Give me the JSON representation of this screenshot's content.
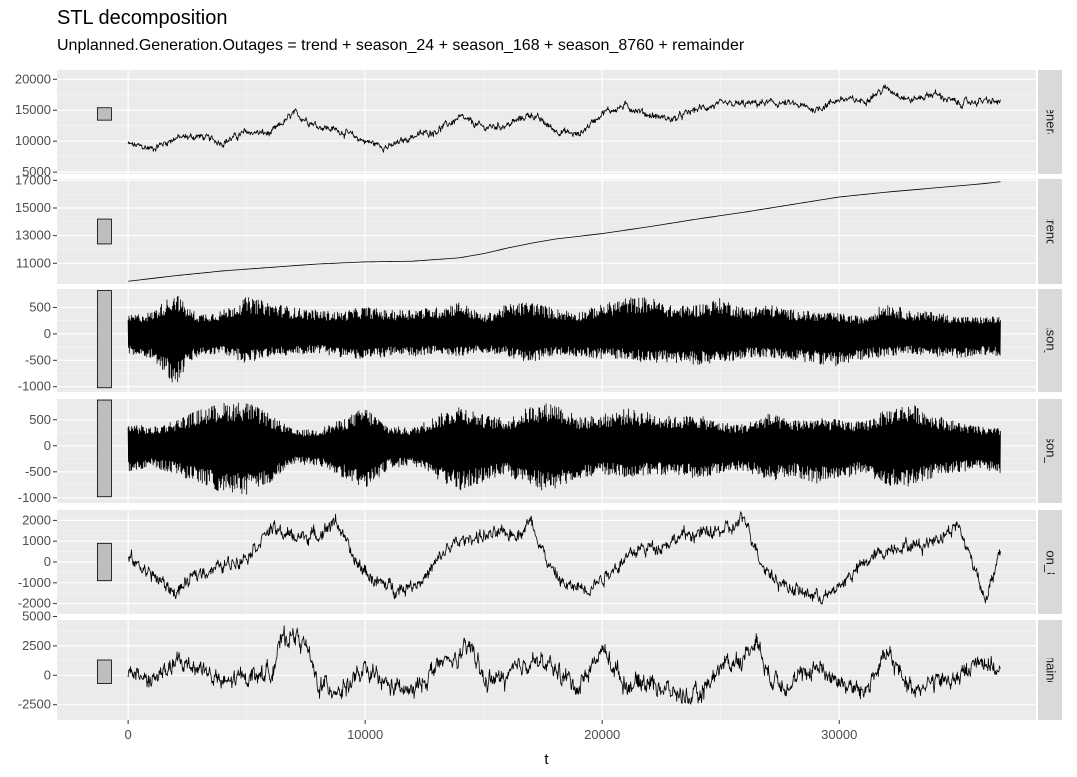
{
  "chart_data": {
    "type": "line",
    "title": "STL decomposition",
    "subtitle": "Unplanned.Generation.Outages = trend + season_24 + season_168 + season_8760 + remainder",
    "xlabel": "t",
    "xlim": [
      -3000,
      38300
    ],
    "x_ticks": [
      0,
      10000,
      20000,
      30000
    ],
    "x_tick_labels": [
      "0",
      "10000",
      "20000",
      "30000"
    ],
    "x_range": [
      0,
      36800
    ],
    "grid": true,
    "panels": [
      {
        "name": "Unplanned.Generation.Outages",
        "strip_label": "Unplanned.Generation.Outages",
        "ylim": [
          4700,
          21500
        ],
        "y_ticks": [
          5000,
          10000,
          15000,
          20000
        ],
        "y_tick_labels": [
          "5000",
          "10000",
          "15000",
          "20000"
        ],
        "scale_bar": [
          13400,
          15400
        ],
        "x": [
          0,
          1000,
          2000,
          3000,
          4000,
          5000,
          6000,
          7000,
          8000,
          9000,
          10000,
          11000,
          12000,
          13000,
          14000,
          15000,
          16000,
          17000,
          18000,
          19000,
          20000,
          21000,
          22000,
          23000,
          24000,
          25000,
          26000,
          27000,
          28000,
          29000,
          30000,
          31000,
          32000,
          33000,
          34000,
          35000,
          36000,
          36800
        ],
        "values": [
          9500,
          8800,
          10500,
          10800,
          9800,
          11500,
          11200,
          14500,
          12500,
          11600,
          10000,
          9000,
          10800,
          11700,
          13800,
          12200,
          12600,
          14400,
          11800,
          11000,
          14600,
          15700,
          14200,
          13500,
          15200,
          15900,
          16000,
          16200,
          16000,
          15100,
          16800,
          16500,
          18600,
          16600,
          17700,
          16100,
          16500,
          16300
        ],
        "noise_amplitude": 800
      },
      {
        "name": "trend",
        "strip_label": "trend",
        "ylim": [
          9500,
          17100
        ],
        "y_ticks": [
          11000,
          13000,
          15000,
          17000
        ],
        "y_tick_labels": [
          "11000",
          "13000",
          "15000",
          "17000"
        ],
        "scale_bar": [
          12400,
          14200
        ],
        "x": [
          0,
          2000,
          4000,
          6000,
          8000,
          10000,
          12000,
          14000,
          15000,
          16000,
          17000,
          18000,
          20000,
          22000,
          24000,
          26000,
          28000,
          30000,
          32000,
          34000,
          36000,
          36800
        ],
        "values": [
          9700,
          10100,
          10450,
          10700,
          10950,
          11100,
          11150,
          11400,
          11700,
          12100,
          12450,
          12750,
          13150,
          13650,
          14200,
          14700,
          15250,
          15800,
          16150,
          16450,
          16750,
          16900
        ],
        "noise_amplitude": 0
      },
      {
        "name": "season_24",
        "strip_label": "season_24",
        "ylim": [
          -1100,
          850
        ],
        "y_ticks": [
          -1000,
          -500,
          0,
          500
        ],
        "y_tick_labels": [
          "-1000",
          "-500",
          "0",
          "500"
        ],
        "scale_bar": [
          -1020,
          820
        ],
        "envelope_x": [
          0,
          1000,
          2000,
          2500,
          3000,
          4000,
          5000,
          6000,
          7000,
          8000,
          9000,
          10000,
          11000,
          12000,
          13000,
          14000,
          15000,
          16000,
          17000,
          18000,
          19000,
          20000,
          21000,
          22000,
          23000,
          24000,
          25000,
          26000,
          27000,
          28000,
          29000,
          30000,
          31000,
          32000,
          33000,
          34000,
          35000,
          36000,
          36800
        ],
        "envelope_upper": [
          350,
          420,
          800,
          500,
          380,
          450,
          700,
          600,
          500,
          450,
          420,
          520,
          440,
          480,
          500,
          620,
          350,
          560,
          620,
          480,
          420,
          560,
          690,
          700,
          520,
          560,
          680,
          500,
          560,
          460,
          420,
          390,
          320,
          600,
          430,
          420,
          330,
          320,
          330
        ],
        "envelope_lower": [
          -400,
          -450,
          -1000,
          -600,
          -420,
          -380,
          -560,
          -430,
          -400,
          -360,
          -440,
          -500,
          -420,
          -440,
          -380,
          -420,
          -360,
          -420,
          -570,
          -400,
          -420,
          -480,
          -470,
          -560,
          -540,
          -580,
          -570,
          -450,
          -450,
          -500,
          -560,
          -620,
          -480,
          -420,
          -380,
          -420,
          -470,
          -380,
          -450
        ]
      },
      {
        "name": "season_168",
        "strip_label": "season_168",
        "ylim": [
          -1100,
          900
        ],
        "y_ticks": [
          -1000,
          -500,
          0,
          500
        ],
        "y_tick_labels": [
          "-1000",
          "-500",
          "0",
          "500"
        ],
        "scale_bar": [
          -980,
          880
        ],
        "envelope_x": [
          0,
          1000,
          2000,
          3000,
          4000,
          5000,
          6000,
          7000,
          8000,
          9000,
          10000,
          11000,
          12000,
          13000,
          14000,
          15000,
          16000,
          17000,
          18000,
          19000,
          20000,
          21000,
          22000,
          23000,
          24000,
          25000,
          26000,
          27000,
          28000,
          29000,
          30000,
          31000,
          32000,
          33000,
          34000,
          35000,
          36000,
          36800
        ],
        "envelope_upper": [
          450,
          350,
          500,
          700,
          830,
          860,
          600,
          300,
          320,
          500,
          750,
          380,
          350,
          580,
          800,
          600,
          520,
          780,
          850,
          550,
          600,
          720,
          650,
          560,
          600,
          450,
          420,
          620,
          500,
          540,
          500,
          460,
          700,
          820,
          600,
          460,
          360,
          330
        ],
        "envelope_lower": [
          -500,
          -400,
          -550,
          -750,
          -900,
          -960,
          -720,
          -350,
          -380,
          -600,
          -850,
          -430,
          -380,
          -650,
          -880,
          -700,
          -560,
          -830,
          -880,
          -620,
          -560,
          -600,
          -560,
          -560,
          -650,
          -520,
          -480,
          -700,
          -560,
          -740,
          -650,
          -520,
          -760,
          -780,
          -600,
          -500,
          -470,
          -550
        ]
      },
      {
        "name": "season_8760",
        "strip_label": "season_8760",
        "ylim": [
          -2500,
          2500
        ],
        "y_ticks": [
          -2000,
          -1000,
          0,
          1000,
          2000
        ],
        "y_tick_labels": [
          "-2000",
          "-1000",
          "0",
          "1000",
          "2000"
        ],
        "scale_bar": [
          -900,
          900
        ],
        "x": [
          0,
          1000,
          2000,
          3000,
          4000,
          5000,
          6000,
          7000,
          8000,
          8800,
          9500,
          10500,
          11500,
          12500,
          13500,
          14500,
          15500,
          16500,
          17000,
          17800,
          18500,
          19500,
          20500,
          21500,
          22500,
          23500,
          24500,
          25500,
          26000,
          26800,
          27500,
          28500,
          29500,
          30500,
          31500,
          32500,
          33500,
          34500,
          35000,
          35800,
          36200,
          36800
        ],
        "values": [
          200,
          -600,
          -1500,
          -500,
          -200,
          300,
          1600,
          1200,
          1300,
          2000,
          100,
          -1000,
          -1300,
          -800,
          700,
          1200,
          1300,
          1400,
          2000,
          -300,
          -1200,
          -1200,
          -300,
          600,
          800,
          1300,
          1400,
          1600,
          2100,
          -200,
          -1000,
          -1500,
          -1700,
          -600,
          300,
          800,
          800,
          1400,
          1800,
          -500,
          -1800,
          400
        ],
        "noise_amplitude": 450
      },
      {
        "name": "remainder",
        "strip_label": "remainder",
        "ylim": [
          -3800,
          4700
        ],
        "y_ticks": [
          -2500,
          0,
          2500,
          5000
        ],
        "y_tick_labels": [
          "-2500",
          "0",
          "2500",
          "5000"
        ],
        "scale_bar": [
          -700,
          1300
        ],
        "x": [
          0,
          1000,
          2000,
          3000,
          4000,
          5000,
          6000,
          6500,
          7000,
          7500,
          8000,
          9000,
          10000,
          11000,
          12000,
          13000,
          14000,
          14500,
          15000,
          16000,
          17000,
          18000,
          19000,
          20000,
          21000,
          22000,
          23000,
          24000,
          25000,
          26000,
          26500,
          27000,
          28000,
          29000,
          30000,
          31000,
          32000,
          33000,
          34000,
          35000,
          36000,
          36800
        ],
        "values": [
          500,
          -500,
          1000,
          800,
          -800,
          0,
          200,
          3000,
          3500,
          2500,
          -800,
          -1200,
          300,
          -900,
          -1500,
          800,
          1500,
          2500,
          -500,
          -200,
          1400,
          500,
          -1000,
          2200,
          -800,
          -500,
          -1500,
          -2000,
          800,
          1500,
          3200,
          0,
          -800,
          800,
          -500,
          -1500,
          1800,
          -1000,
          -600,
          -300,
          1500,
          200
        ],
        "noise_amplitude": 1100
      }
    ]
  }
}
